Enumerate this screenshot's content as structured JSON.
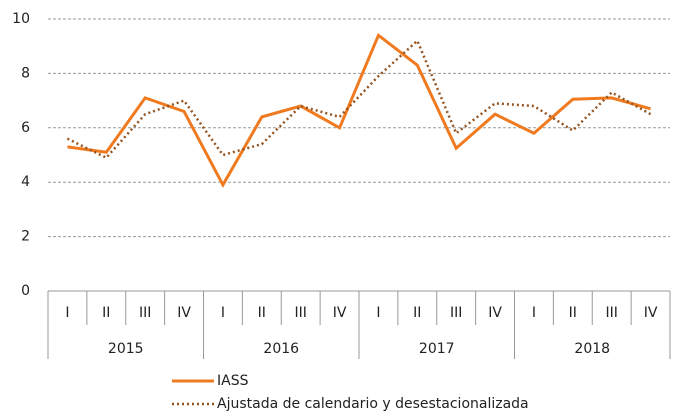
{
  "chart_data": {
    "type": "line",
    "categories": [
      "I",
      "II",
      "III",
      "IV",
      "I",
      "II",
      "III",
      "IV",
      "I",
      "II",
      "III",
      "IV",
      "I",
      "II",
      "III",
      "IV"
    ],
    "groups": [
      "2015",
      "2016",
      "2017",
      "2018"
    ],
    "series": [
      {
        "name": "IASS",
        "color": "#ef7a1f",
        "style": "solid",
        "values": [
          5.3,
          5.1,
          7.1,
          6.6,
          3.9,
          6.4,
          6.8,
          6.0,
          9.4,
          8.3,
          5.25,
          6.5,
          5.8,
          7.05,
          7.1,
          6.7
        ]
      },
      {
        "name": "Ajustada de calendario y desestacionalizada",
        "color": "#94531f",
        "style": "dotted",
        "values": [
          5.6,
          4.9,
          6.5,
          7.0,
          5.0,
          5.4,
          6.8,
          6.4,
          7.9,
          9.2,
          5.8,
          6.9,
          6.8,
          5.9,
          7.3,
          6.5
        ]
      }
    ],
    "ylim": [
      0,
      10
    ],
    "yticks": [
      0,
      2,
      4,
      6,
      8,
      10
    ],
    "grid": true
  }
}
